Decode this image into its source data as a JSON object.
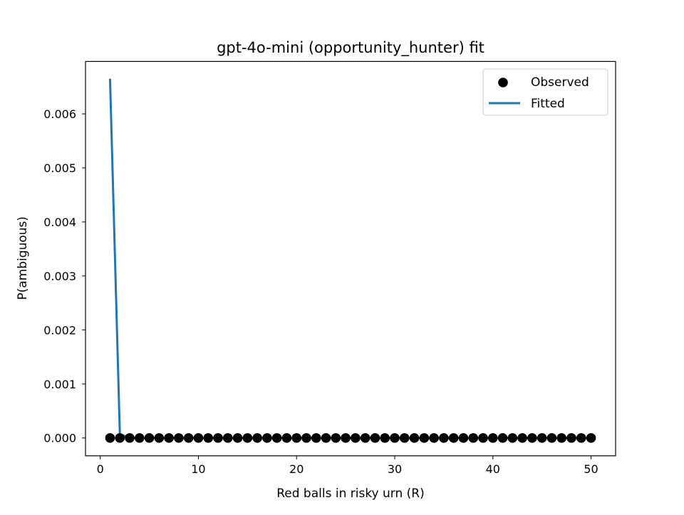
{
  "chart_data": {
    "type": "scatter",
    "title": "gpt-4o-mini (opportunity_hunter) fit",
    "xlabel": "Red balls in risky urn (R)",
    "ylabel": "P(ambiguous)",
    "xlim": [
      -1.5,
      52.5
    ],
    "ylim": [
      -0.00033,
      0.00697
    ],
    "xticks": [
      0,
      10,
      20,
      30,
      40,
      50
    ],
    "xtick_labels": [
      "0",
      "10",
      "20",
      "30",
      "40",
      "50"
    ],
    "yticks": [
      0.0,
      0.001,
      0.002,
      0.003,
      0.004,
      0.005,
      0.006
    ],
    "ytick_labels": [
      "0.000",
      "0.001",
      "0.002",
      "0.003",
      "0.004",
      "0.005",
      "0.006"
    ],
    "grid": false,
    "legend_position": "top-right",
    "series": [
      {
        "name": "Observed",
        "kind": "scatter",
        "color": "#000000",
        "x": [
          1,
          2,
          3,
          4,
          5,
          6,
          7,
          8,
          9,
          10,
          11,
          12,
          13,
          14,
          15,
          16,
          17,
          18,
          19,
          20,
          21,
          22,
          23,
          24,
          25,
          26,
          27,
          28,
          29,
          30,
          31,
          32,
          33,
          34,
          35,
          36,
          37,
          38,
          39,
          40,
          41,
          42,
          43,
          44,
          45,
          46,
          47,
          48,
          49,
          50
        ],
        "y": [
          0,
          0,
          0,
          0,
          0,
          0,
          0,
          0,
          0,
          0,
          0,
          0,
          0,
          0,
          0,
          0,
          0,
          0,
          0,
          0,
          0,
          0,
          0,
          0,
          0,
          0,
          0,
          0,
          0,
          0,
          0,
          0,
          0,
          0,
          0,
          0,
          0,
          0,
          0,
          0,
          0,
          0,
          0,
          0,
          0,
          0,
          0,
          0,
          0,
          0
        ]
      },
      {
        "name": "Fitted",
        "kind": "line",
        "color": "#1f77b4",
        "x": [
          1,
          2,
          3,
          4,
          5,
          6,
          7,
          8,
          9,
          10,
          11,
          12,
          13,
          14,
          15,
          16,
          17,
          18,
          19,
          20,
          21,
          22,
          23,
          24,
          25,
          26,
          27,
          28,
          29,
          30,
          31,
          32,
          33,
          34,
          35,
          36,
          37,
          38,
          39,
          40,
          41,
          42,
          43,
          44,
          45,
          46,
          47,
          48,
          49,
          50
        ],
        "y": [
          0.00665,
          7e-05,
          1e-06,
          0,
          0,
          0,
          0,
          0,
          0,
          0,
          0,
          0,
          0,
          0,
          0,
          0,
          0,
          0,
          0,
          0,
          0,
          0,
          0,
          0,
          0,
          0,
          0,
          0,
          0,
          0,
          0,
          0,
          0,
          0,
          0,
          0,
          0,
          0,
          0,
          0,
          0,
          0,
          0,
          0,
          0,
          0,
          0,
          0,
          0,
          0
        ]
      }
    ]
  }
}
